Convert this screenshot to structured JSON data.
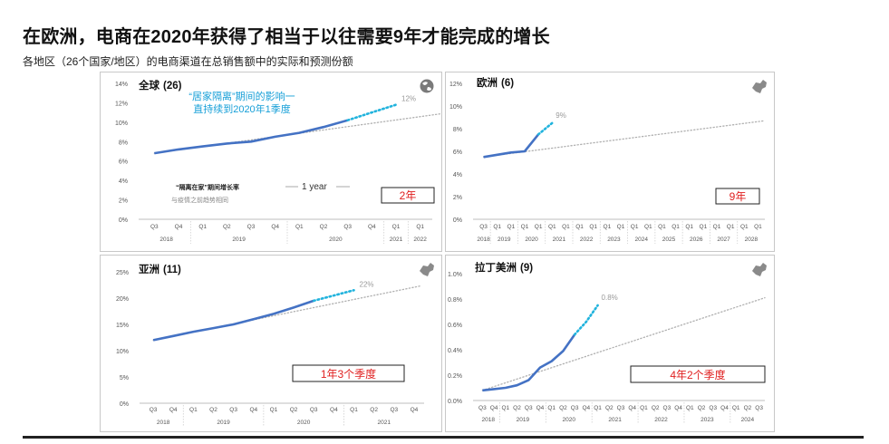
{
  "header": {
    "title": "在欧洲，电商在2020年获得了相当于以往需要9年才能完成的增长",
    "subtitle": "各地区（26个国家/地区）的电商渠道在总销售额中的实际和预测份额"
  },
  "colors": {
    "actual": "#4472c4",
    "forecast": "#21b3dd",
    "trend": "#b0b0b0",
    "box_text": "#e02020",
    "note": "#18a0d8"
  },
  "chart_data": [
    {
      "id": "global",
      "type": "line",
      "title": "全球",
      "count": "(26)",
      "region_icon": "globe-icon",
      "ylim": [
        0,
        14
      ],
      "yticks": [
        "0%",
        "2%",
        "4%",
        "6%",
        "8%",
        "10%",
        "12%",
        "14%"
      ],
      "ytick_values": [
        0,
        2,
        4,
        6,
        8,
        10,
        12,
        14
      ],
      "quarters": [
        "Q3",
        "Q4",
        "Q1",
        "Q2",
        "Q3",
        "Q4",
        "Q1",
        "Q2",
        "Q3",
        "Q4",
        "Q1",
        "Q1"
      ],
      "years": [
        "2018",
        "2019",
        "2020",
        "2021",
        "2022"
      ],
      "year_spans": [
        [
          0,
          1
        ],
        [
          2,
          5
        ],
        [
          6,
          9
        ],
        [
          10,
          10
        ],
        [
          11,
          11
        ]
      ],
      "actual": [
        6.8,
        7.2,
        7.5,
        7.8,
        8.0,
        8.5,
        8.9,
        9.5,
        10.2
      ],
      "forecast": [
        10.2,
        11.0,
        11.8
      ],
      "trend": [
        [
          0,
          6.8
        ],
        [
          14,
          11.6
        ]
      ],
      "end_label": "12%",
      "box_label": "2年",
      "note": [
        "“居家隔离”期间的影响一",
        "直持续到2020年1季度"
      ],
      "legend": {
        "actual": "“隔离在家”期间增长率",
        "trend": "与疫情之前趋势相同",
        "year_marker": "1 year"
      }
    },
    {
      "id": "europe",
      "type": "line",
      "title": "欧洲",
      "count": "(6)",
      "region_icon": "europe-map-icon",
      "ylim": [
        0,
        12
      ],
      "yticks": [
        "0%",
        "2%",
        "4%",
        "6%",
        "8%",
        "10%",
        "12%"
      ],
      "ytick_values": [
        0,
        2,
        4,
        6,
        8,
        10,
        12
      ],
      "quarters": [
        "Q3",
        "Q1",
        "Q1",
        "Q1",
        "Q1",
        "Q1",
        "Q1",
        "Q1",
        "Q1",
        "Q1",
        "Q1",
        "Q1",
        "Q1",
        "Q1",
        "Q1",
        "Q1",
        "Q1",
        "Q1",
        "Q1",
        "Q1",
        "Q1"
      ],
      "years": [
        "2018",
        "2019",
        "2020",
        "2021",
        "2022",
        "2023",
        "2024",
        "2025",
        "2026",
        "2027",
        "2028"
      ],
      "year_spans": [
        [
          0,
          0
        ],
        [
          1,
          2
        ],
        [
          3,
          4
        ],
        [
          5,
          6
        ],
        [
          7,
          8
        ],
        [
          9,
          10
        ],
        [
          11,
          12
        ],
        [
          13,
          14
        ],
        [
          15,
          16
        ],
        [
          17,
          18
        ],
        [
          19,
          20
        ]
      ],
      "actual": [
        5.5,
        5.7,
        5.9,
        6.0,
        7.5
      ],
      "forecast": [
        7.5,
        8.5
      ],
      "trend": [
        [
          0,
          5.5
        ],
        [
          20.5,
          8.7
        ]
      ],
      "end_label": "9%",
      "box_label": "9年"
    },
    {
      "id": "asia",
      "type": "line",
      "title": "亚洲",
      "count": "(11)",
      "region_icon": "asia-map-icon",
      "ylim": [
        0,
        25
      ],
      "yticks": [
        "0%",
        "5%",
        "10%",
        "15%",
        "20%",
        "25%"
      ],
      "ytick_values": [
        0,
        5,
        10,
        15,
        20,
        25
      ],
      "quarters": [
        "Q3",
        "Q4",
        "Q1",
        "Q2",
        "Q3",
        "Q4",
        "Q1",
        "Q2",
        "Q3",
        "Q4",
        "Q1",
        "Q2",
        "Q3",
        "Q4"
      ],
      "years": [
        "2018",
        "2019",
        "2020",
        "2021"
      ],
      "year_spans": [
        [
          0,
          1
        ],
        [
          2,
          5
        ],
        [
          6,
          9
        ],
        [
          10,
          13
        ]
      ],
      "actual": [
        12.0,
        12.8,
        13.6,
        14.3,
        15.0,
        16.0,
        17.0,
        18.2,
        19.5
      ],
      "forecast": [
        19.5,
        20.5,
        21.5
      ],
      "trend": [
        [
          0,
          12.0
        ],
        [
          13.3,
          22.3
        ]
      ],
      "end_label": "22%",
      "box_label": "1年3个季度"
    },
    {
      "id": "latam",
      "type": "line",
      "title": "拉丁美洲",
      "count": "(9)",
      "region_icon": "latin-america-map-icon",
      "ylim": [
        0,
        1.0
      ],
      "yticks": [
        "0.0%",
        "0.2%",
        "0.4%",
        "0.6%",
        "0.8%",
        "1.0%"
      ],
      "ytick_values": [
        0,
        0.2,
        0.4,
        0.6,
        0.8,
        1.0
      ],
      "quarters": [
        "Q3",
        "Q4",
        "Q1",
        "Q2",
        "Q3",
        "Q4",
        "Q1",
        "Q2",
        "Q3",
        "Q4",
        "Q1",
        "Q2",
        "Q3",
        "Q4",
        "Q1",
        "Q2",
        "Q3",
        "Q4",
        "Q1",
        "Q2",
        "Q3",
        "Q4",
        "Q1",
        "Q2",
        "Q3"
      ],
      "years": [
        "2018",
        "2019",
        "2020",
        "2021",
        "2022",
        "2023",
        "2024"
      ],
      "year_spans": [
        [
          0,
          1
        ],
        [
          2,
          5
        ],
        [
          6,
          9
        ],
        [
          10,
          13
        ],
        [
          14,
          17
        ],
        [
          18,
          21
        ],
        [
          22,
          24
        ]
      ],
      "actual": [
        0.08,
        0.09,
        0.1,
        0.12,
        0.16,
        0.26,
        0.31,
        0.39,
        0.52
      ],
      "forecast": [
        0.52,
        0.62,
        0.75
      ],
      "trend": [
        [
          0,
          0.08
        ],
        [
          24.5,
          0.81
        ]
      ],
      "end_label": "0.8%",
      "box_label": "4年2个季度"
    }
  ]
}
